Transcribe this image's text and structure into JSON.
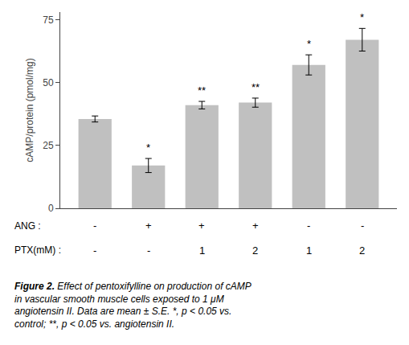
{
  "chart_data": {
    "type": "bar",
    "categories": [
      null,
      null,
      null,
      null,
      null,
      null
    ],
    "values": [
      35.5,
      17,
      41,
      42,
      57,
      67
    ],
    "errors": [
      1.2,
      2.8,
      1.5,
      1.8,
      4.0,
      4.5
    ],
    "significance": [
      null,
      "*",
      "**",
      "**",
      "*",
      "*"
    ],
    "color": "#c0c0c0",
    "ylabel": "cAMP/protein (pmol/mg)",
    "ylim": [
      0,
      78
    ],
    "yticks": [
      0,
      25,
      50,
      75
    ],
    "grid": false,
    "tick_labels": "y",
    "annotations": [
      {
        "text": "ANG :",
        "labels": [
          "-",
          "+",
          "+",
          "+",
          "-",
          "-"
        ]
      },
      {
        "text": "PTX(mM) :",
        "labels": [
          "-",
          "-",
          "1",
          "2",
          "1",
          "2"
        ]
      }
    ],
    "caption": {
      "label": "Figure 2.",
      "text": "Effect of pentoxifylline on production of cAMP\nin vascular smooth muscle cells exposed to 1 μM\nangiotensin II. Data are mean ± S.E. *, p < 0.05 vs.\ncontrol; **, p < 0.05 vs. angiotensin II."
    }
  }
}
